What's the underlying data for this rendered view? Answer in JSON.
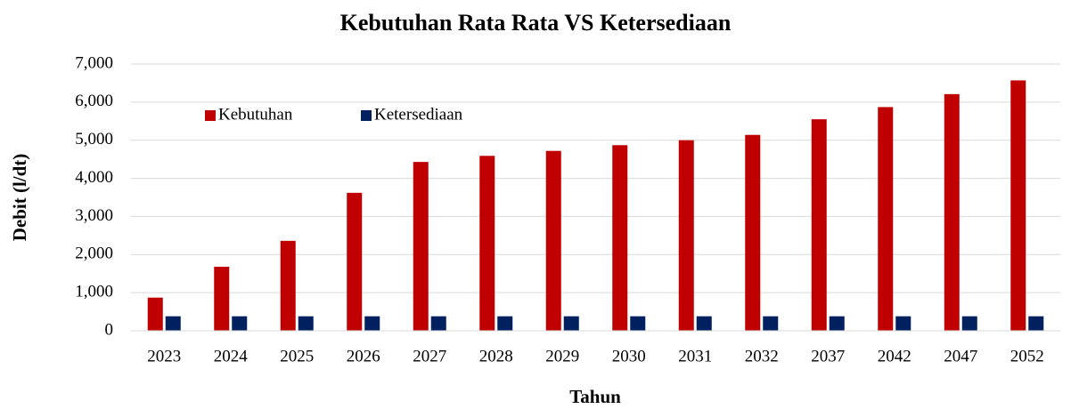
{
  "chart_data": {
    "type": "bar",
    "title": "Kebutuhan Rata Rata VS Ketersediaan",
    "xlabel": "Tahun",
    "ylabel": "Debit (l/dt)",
    "categories": [
      "2023",
      "2024",
      "2025",
      "2026",
      "2027",
      "2028",
      "2029",
      "2030",
      "2031",
      "2032",
      "2037",
      "2042",
      "2047",
      "2052"
    ],
    "series": [
      {
        "name": "Kebutuhan",
        "color": "#c00000",
        "values": [
          870,
          1680,
          2360,
          3620,
          4430,
          4590,
          4720,
          4870,
          5000,
          5140,
          5550,
          5870,
          6210,
          6570
        ]
      },
      {
        "name": "Ketersediaan",
        "color": "#002060",
        "values": [
          380,
          380,
          380,
          380,
          380,
          380,
          380,
          380,
          380,
          380,
          380,
          380,
          380,
          380
        ]
      }
    ],
    "ylim": [
      0,
      7000
    ],
    "yticks": [
      0,
      {
        "value": 1000,
        "label": "1,000"
      },
      {
        "value": 2000,
        "label": "2,000"
      },
      {
        "value": 3000,
        "label": "3,000"
      },
      {
        "value": 4000,
        "label": "4,000"
      },
      {
        "value": 5000,
        "label": "5,000"
      },
      {
        "value": 6000,
        "label": "6,000"
      },
      {
        "value": 7000,
        "label": "7,000"
      }
    ],
    "grid": true,
    "legend": "upper left"
  }
}
